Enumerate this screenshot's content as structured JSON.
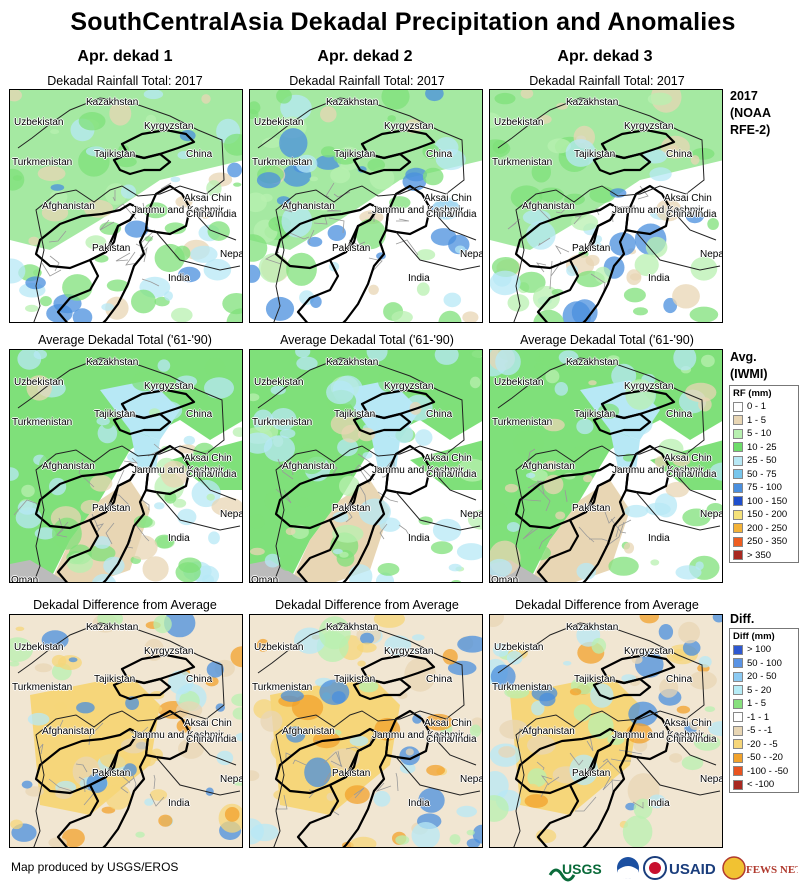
{
  "title": "SouthCentralAsia Dekadal Precipitation and Anomalies",
  "columns": [
    "Apr. dekad 1",
    "Apr. dekad 2",
    "Apr. dekad 3"
  ],
  "row_titles": [
    "Dekadal Rainfall Total: 2017",
    "Average Dekadal Total ('61-'90)",
    "Dekadal Difference from Average"
  ],
  "side_headers": {
    "row1": [
      "2017",
      "(NOAA",
      "RFE-2)"
    ],
    "row2": [
      "Avg.",
      "(IWMI)"
    ],
    "row3": [
      "Diff."
    ]
  },
  "map_labels": {
    "kazakhstan": "Kazakhstan",
    "uzbekistan": "Uzbekistan",
    "kyrgyzstan": "Kyrgyzstan",
    "turkmenistan": "Turkmenistan",
    "tajikistan": "Tajikistan",
    "china": "China",
    "aksai_chin": "Aksai Chin",
    "jammu_kashmir": "Jammu and Kashmir",
    "china_india": "China/India",
    "afghanistan": "Afghanistan",
    "pakistan": "Pakistan",
    "nepal": "Nepal",
    "india": "India",
    "oman": "Oman"
  },
  "rf_legend": {
    "title": "RF (mm)",
    "items": [
      {
        "label": "0 - 1",
        "color": "#ffffff"
      },
      {
        "label": "1 - 5",
        "color": "#e8d6b4"
      },
      {
        "label": "5 - 10",
        "color": "#b8f0b0"
      },
      {
        "label": "10 - 25",
        "color": "#6ddc6a"
      },
      {
        "label": "25 - 50",
        "color": "#b7e8f5"
      },
      {
        "label": "50 - 75",
        "color": "#78c6ec"
      },
      {
        "label": "75 - 100",
        "color": "#4a8fde"
      },
      {
        "label": "100 - 150",
        "color": "#1f4fcc"
      },
      {
        "label": "150 - 200",
        "color": "#f6e27a"
      },
      {
        "label": "200 - 250",
        "color": "#f3b238"
      },
      {
        "label": "250 - 350",
        "color": "#ee5d20"
      },
      {
        "label": "> 350",
        "color": "#a82820"
      }
    ]
  },
  "diff_legend": {
    "title": "Diff (mm)",
    "items": [
      {
        "label": "> 100",
        "color": "#2e58d0"
      },
      {
        "label": "50 - 100",
        "color": "#5a93e4"
      },
      {
        "label": "20 - 50",
        "color": "#8ccaf2"
      },
      {
        "label": "5 - 20",
        "color": "#b6ecf6"
      },
      {
        "label": "1 - 5",
        "color": "#88e07e"
      },
      {
        "label": "-1 - 1",
        "color": "#ffffff"
      },
      {
        "label": "-5 - -1",
        "color": "#e8d6b4"
      },
      {
        "label": "-20 - -5",
        "color": "#f6d67a"
      },
      {
        "label": "-50 - -20",
        "color": "#f1a22c"
      },
      {
        "label": "-100 - -50",
        "color": "#e9541f"
      },
      {
        "label": "< -100",
        "color": "#a82820"
      }
    ]
  },
  "footer": "Map produced by USGS/EROS",
  "logos": [
    "USGS",
    "USAID",
    "FEWS NET"
  ],
  "colors": {
    "land_white": "#ffffff",
    "green": "#7fe07a",
    "light_green": "#b8f0b0",
    "tan": "#e8d6b4",
    "light_blue": "#b7e8f5",
    "blue": "#4a8fde",
    "yellow": "#f6d67a",
    "orange": "#f1a22c",
    "gray_sea": "#bbbbbb"
  }
}
